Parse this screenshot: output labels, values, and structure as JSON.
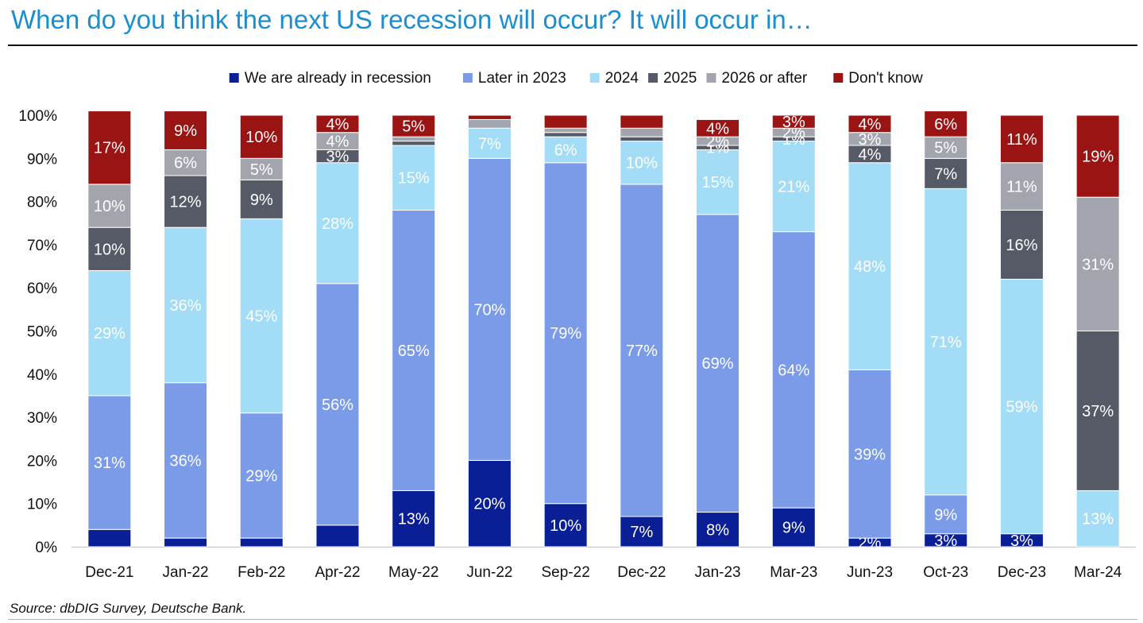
{
  "title": "When do you think the next US recession will occur? It will occur in…",
  "source": "Source: dbDIG Survey, Deutsche Bank.",
  "chart_data": {
    "type": "bar",
    "stacked": true,
    "title": "When do you think the next US recession will occur? It will occur in…",
    "xlabel": "",
    "ylabel": "",
    "ylim": [
      0,
      100
    ],
    "y_ticks": [
      "0%",
      "10%",
      "20%",
      "30%",
      "40%",
      "50%",
      "60%",
      "70%",
      "80%",
      "90%",
      "100%"
    ],
    "legend_position": "top",
    "categories": [
      "Dec-21",
      "Jan-22",
      "Feb-22",
      "Apr-22",
      "May-22",
      "Jun-22",
      "Sep-22",
      "Dec-22",
      "Jan-23",
      "Mar-23",
      "Jun-23",
      "Oct-23",
      "Dec-23",
      "Mar-24"
    ],
    "series": [
      {
        "name": "We are already in recession",
        "color": "#0a1f96",
        "values": [
          4,
          2,
          2,
          5,
          13,
          20,
          10,
          7,
          8,
          9,
          2,
          3,
          3,
          0
        ],
        "labels": [
          "",
          "",
          "",
          "",
          "13%",
          "20%",
          "10%",
          "7%",
          "8%",
          "9%",
          "2%",
          "3%",
          "3%",
          ""
        ]
      },
      {
        "name": "Later in 2023",
        "color": "#7b9be8",
        "values": [
          31,
          36,
          29,
          56,
          65,
          70,
          79,
          77,
          69,
          64,
          39,
          9,
          0,
          0
        ],
        "labels": [
          "31%",
          "36%",
          "29%",
          "56%",
          "65%",
          "70%",
          "79%",
          "77%",
          "69%",
          "64%",
          "39%",
          "9%",
          "",
          ""
        ]
      },
      {
        "name": "2024",
        "color": "#a3dcf7",
        "values": [
          29,
          36,
          45,
          28,
          15,
          7,
          6,
          10,
          15,
          21,
          48,
          71,
          59,
          13
        ],
        "labels": [
          "29%",
          "36%",
          "45%",
          "28%",
          "15%",
          "7%",
          "6%",
          "10%",
          "15%",
          "21%",
          "48%",
          "71%",
          "59%",
          "13%"
        ]
      },
      {
        "name": "2025",
        "color": "#565a66",
        "values": [
          10,
          12,
          9,
          3,
          1,
          0,
          1,
          1,
          1,
          1,
          4,
          7,
          16,
          37
        ],
        "labels": [
          "10%",
          "12%",
          "9%",
          "3%",
          "",
          "",
          "",
          "",
          "1%",
          "1%",
          "4%",
          "7%",
          "16%",
          "37%"
        ]
      },
      {
        "name": "2026 or after",
        "color": "#a3a5ae",
        "values": [
          10,
          6,
          5,
          4,
          1,
          2,
          1,
          2,
          2,
          2,
          3,
          5,
          11,
          31
        ],
        "labels": [
          "10%",
          "6%",
          "5%",
          "4%",
          "",
          "",
          "",
          "",
          "2%",
          "2%",
          "3%",
          "5%",
          "11%",
          "31%"
        ]
      },
      {
        "name": "Don't know",
        "color": "#9b1414",
        "values": [
          17,
          9,
          10,
          4,
          5,
          1,
          3,
          3,
          4,
          3,
          4,
          6,
          11,
          19
        ],
        "labels": [
          "17%",
          "9%",
          "10%",
          "4%",
          "5%",
          "",
          "",
          "",
          "4%",
          "3%",
          "4%",
          "6%",
          "11%",
          "19%"
        ]
      }
    ]
  }
}
